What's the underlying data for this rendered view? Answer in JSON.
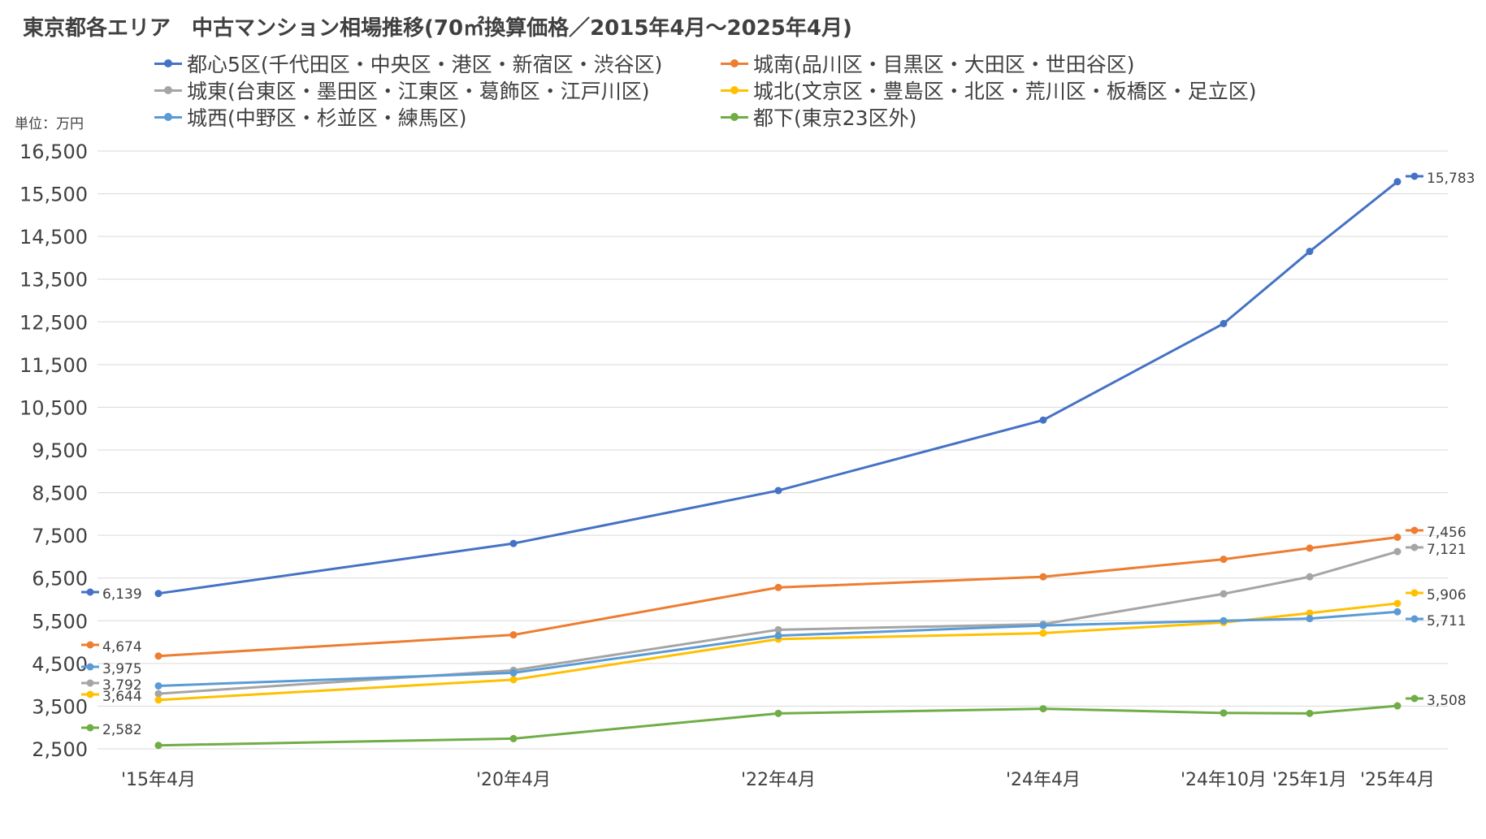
{
  "title": "東京都各エリア　中古マンション相場推移(70㎡換算価格／2015年4月〜2025年4月)",
  "unit_label": "単位：万円",
  "colors": {
    "series": [
      "#4472C4",
      "#ED7D31",
      "#A5A5A5",
      "#FFC000",
      "#5B9BD5",
      "#70AD47"
    ],
    "grid": "#D9D9D9",
    "text": "#404040"
  },
  "chart_data": {
    "type": "line",
    "title": "東京都各エリア　中古マンション相場推移(70㎡換算価格／2015年4月〜2025年4月)",
    "xlabel": "",
    "ylabel": "単位：万円",
    "categories": [
      "'15年4月",
      "'20年4月",
      "'22年4月",
      "'24年4月",
      "'24年10月",
      "'25年1月",
      "'25年4月"
    ],
    "ylim": [
      2500,
      16500
    ],
    "yticks": [
      2500,
      3500,
      4500,
      5500,
      6500,
      7500,
      8500,
      9500,
      10500,
      11500,
      12500,
      13500,
      14500,
      15500,
      16500
    ],
    "grid": true,
    "legend_position": "top",
    "series": [
      {
        "name": "都心5区(千代田区・中央区・港区・新宿区・渋谷区)",
        "values": [
          6139,
          7310,
          8550,
          10200,
          12460,
          14150,
          15783
        ]
      },
      {
        "name": "城南(品川区・目黒区・大田区・世田谷区)",
        "values": [
          4674,
          5170,
          6280,
          6530,
          6940,
          7200,
          7456
        ]
      },
      {
        "name": "城東(台東区・墨田区・江東区・葛飾区・江戸川区)",
        "values": [
          3792,
          4340,
          5290,
          5420,
          6130,
          6530,
          7121
        ]
      },
      {
        "name": "城北(文京区・豊島区・北区・荒川区・板橋区・足立区)",
        "values": [
          3644,
          4120,
          5070,
          5210,
          5460,
          5680,
          5906
        ]
      },
      {
        "name": "城西(中野区・杉並区・練馬区)",
        "values": [
          3975,
          4280,
          5150,
          5390,
          5500,
          5550,
          5711
        ]
      },
      {
        "name": "都下(東京23区外)",
        "values": [
          2582,
          2740,
          3330,
          3440,
          3340,
          3330,
          3508
        ]
      }
    ],
    "first_labels": [
      "6,139",
      "4,674",
      "3,792",
      "3,644",
      "3,975",
      "2,582"
    ],
    "last_labels": [
      "15,783",
      "7,456",
      "7,121",
      "5,906",
      "5,711",
      "3,508"
    ]
  }
}
